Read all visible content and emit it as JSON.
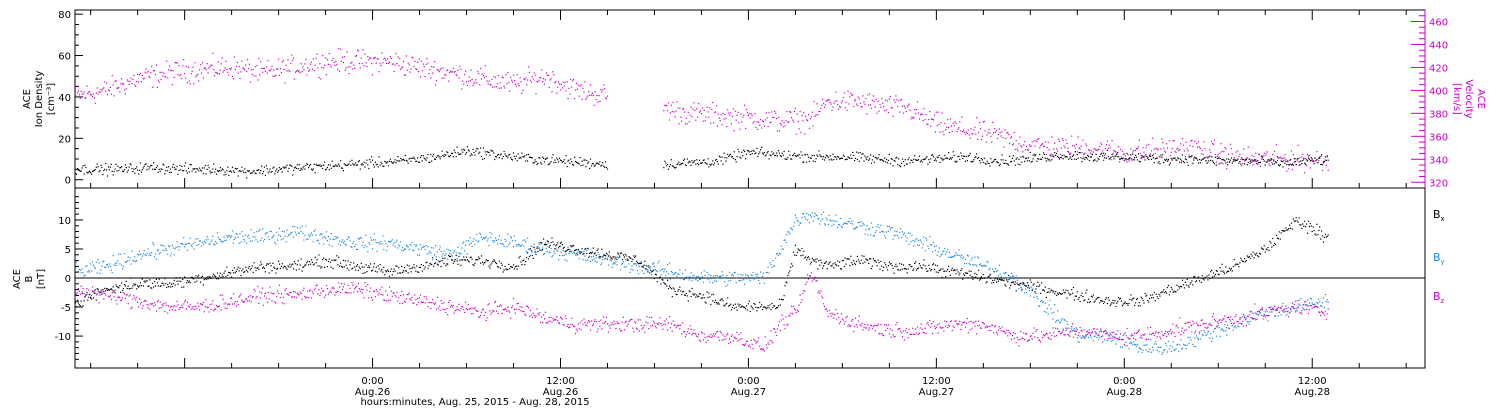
{
  "colors": {
    "black": "#000000",
    "magenta": "#cc00cc",
    "blue": "#1a88e6"
  },
  "xaxis": {
    "title": "hours:minutes, Aug. 25, 2015 - Aug. 28, 2015",
    "range_hours": [
      -19,
      67.2
    ],
    "ticks": [
      {
        "hours": 0,
        "time": "0:00",
        "date": "Aug.26"
      },
      {
        "hours": 12,
        "time": "12:00",
        "date": "Aug.26"
      },
      {
        "hours": 24,
        "time": "0:00",
        "date": "Aug.27"
      },
      {
        "hours": 36,
        "time": "12:00",
        "date": "Aug.27"
      },
      {
        "hours": 48,
        "time": "0:00",
        "date": "Aug.28"
      },
      {
        "hours": 60,
        "time": "12:00",
        "date": "Aug.28"
      }
    ]
  },
  "chart_data": [
    {
      "type": "scatter",
      "panel": "top",
      "ylabel_left": [
        "ACE",
        "Ion Density",
        "[cm⁻³]"
      ],
      "ylabel_right": [
        "ACE",
        "Velocity",
        "[km/s]"
      ],
      "ylim_left": [
        -4,
        82
      ],
      "ylim_right": [
        315,
        470
      ],
      "yticks_left": [
        0,
        20,
        40,
        60,
        80
      ],
      "yticks_right": [
        320,
        340,
        360,
        380,
        400,
        420,
        440,
        460
      ],
      "series": [
        {
          "color": "#000000",
          "axis": "left",
          "gaps": [
            [
              15,
              18.5
            ]
          ],
          "x": [
            -19,
            -16,
            -14,
            -12,
            -10,
            -8,
            -6,
            -4,
            -2,
            0,
            2,
            4,
            6,
            8,
            10,
            12,
            14,
            16,
            18,
            20,
            22,
            24,
            26,
            28,
            30,
            32,
            34,
            36,
            38,
            40,
            42,
            44,
            46,
            48,
            50,
            52,
            54,
            56,
            58,
            60,
            61
          ],
          "y": [
            5,
            5,
            6,
            5,
            5,
            4,
            5,
            6,
            7,
            8,
            9,
            11,
            14,
            12,
            10,
            9,
            8,
            7,
            7,
            8,
            9,
            13,
            12,
            11,
            11,
            10,
            9,
            10,
            11,
            9,
            10,
            12,
            11,
            11,
            10,
            10,
            9,
            9,
            8,
            9,
            10
          ]
        },
        {
          "color": "#cc00cc",
          "axis": "right",
          "gaps": [
            [
              15,
              18.5
            ]
          ],
          "x": [
            -19,
            -17,
            -15,
            -13,
            -11,
            -9,
            -7,
            -5,
            -3,
            -1,
            1,
            3,
            5,
            7,
            9,
            11,
            13,
            15,
            18.5,
            20,
            22,
            24,
            26,
            28,
            29,
            31,
            33,
            34,
            36,
            38,
            40,
            42,
            44,
            46,
            48,
            50,
            52,
            54,
            56,
            58,
            60,
            61
          ],
          "y": [
            395,
            400,
            410,
            415,
            418,
            420,
            415,
            420,
            425,
            425,
            425,
            420,
            415,
            410,
            405,
            412,
            400,
            395,
            385,
            380,
            378,
            376,
            373,
            375,
            390,
            390,
            385,
            385,
            370,
            365,
            360,
            352,
            350,
            350,
            345,
            348,
            350,
            345,
            340,
            340,
            340,
            338
          ]
        }
      ]
    },
    {
      "type": "scatter",
      "panel": "bottom",
      "ylabel_left": [
        "ACE",
        "B",
        "[nT]"
      ],
      "ylim": [
        -15.5,
        15.5
      ],
      "yticks": [
        -10,
        -5,
        0,
        5,
        10
      ],
      "zero_line": true,
      "series": [
        {
          "name": "Bx",
          "color": "#000000",
          "x": [
            -19,
            -17,
            -15,
            -13,
            -11,
            -9,
            -7,
            -5,
            -3,
            -1,
            1,
            3,
            5,
            7,
            9,
            11,
            13,
            15,
            17,
            19,
            21,
            23,
            25,
            26,
            27,
            28,
            29,
            31,
            33,
            35,
            37,
            39,
            41,
            43,
            45,
            47,
            49,
            51,
            53,
            55,
            57,
            59,
            61
          ],
          "y": [
            -4,
            -2,
            -1,
            -1,
            0,
            1,
            2,
            2,
            3,
            2,
            1,
            2,
            3,
            3,
            2,
            6,
            5,
            4,
            3,
            -2,
            -3,
            -5,
            -5,
            -5,
            5,
            3,
            2,
            3,
            2,
            2,
            1,
            0,
            -1,
            -2,
            -3,
            -4,
            -4,
            -2,
            0,
            2,
            5,
            10,
            7
          ]
        },
        {
          "name": "By",
          "color": "#1a88e6",
          "x": [
            -19,
            -17,
            -15,
            -13,
            -11,
            -9,
            -7,
            -5,
            -3,
            -1,
            1,
            3,
            5,
            7,
            9,
            11,
            13,
            15,
            17,
            19,
            21,
            23,
            25,
            26,
            27,
            28,
            29,
            31,
            33,
            35,
            37,
            39,
            41,
            43,
            45,
            47,
            49,
            51,
            53,
            55,
            57,
            59,
            61
          ],
          "y": [
            1,
            2,
            4,
            5,
            6,
            7,
            7,
            8,
            7,
            6,
            6,
            5,
            4,
            7,
            6,
            5,
            4,
            3,
            2,
            1,
            0,
            0,
            0,
            5,
            10,
            11,
            10,
            9,
            8,
            6,
            4,
            2,
            0,
            -5,
            -10,
            -10,
            -12,
            -12,
            -10,
            -8,
            -6,
            -5,
            -4
          ]
        },
        {
          "name": "Bz",
          "color": "#cc00cc",
          "x": [
            -19,
            -17,
            -15,
            -13,
            -11,
            -9,
            -7,
            -5,
            -3,
            -1,
            1,
            3,
            5,
            7,
            9,
            11,
            13,
            15,
            17,
            19,
            21,
            23,
            25,
            26,
            27,
            28,
            29,
            31,
            33,
            35,
            37,
            39,
            41,
            43,
            45,
            47,
            49,
            51,
            53,
            55,
            57,
            59,
            61
          ],
          "y": [
            -2,
            -3,
            -4,
            -5,
            -5,
            -4,
            -3,
            -3,
            -2,
            -2,
            -3,
            -4,
            -5,
            -6,
            -5,
            -7,
            -8,
            -8,
            -8,
            -8,
            -10,
            -10,
            -12,
            -8,
            -6,
            1,
            -6,
            -8,
            -9,
            -9,
            -8,
            -8,
            -10,
            -10,
            -9,
            -10,
            -10,
            -9,
            -8,
            -7,
            -6,
            -5,
            -6
          ]
        }
      ],
      "legend": [
        {
          "base": "B",
          "sub": "x",
          "color": "#000000"
        },
        {
          "base": "B",
          "sub": "y",
          "color": "#1a88e6"
        },
        {
          "base": "B",
          "sub": "z",
          "color": "#cc00cc"
        }
      ]
    }
  ]
}
